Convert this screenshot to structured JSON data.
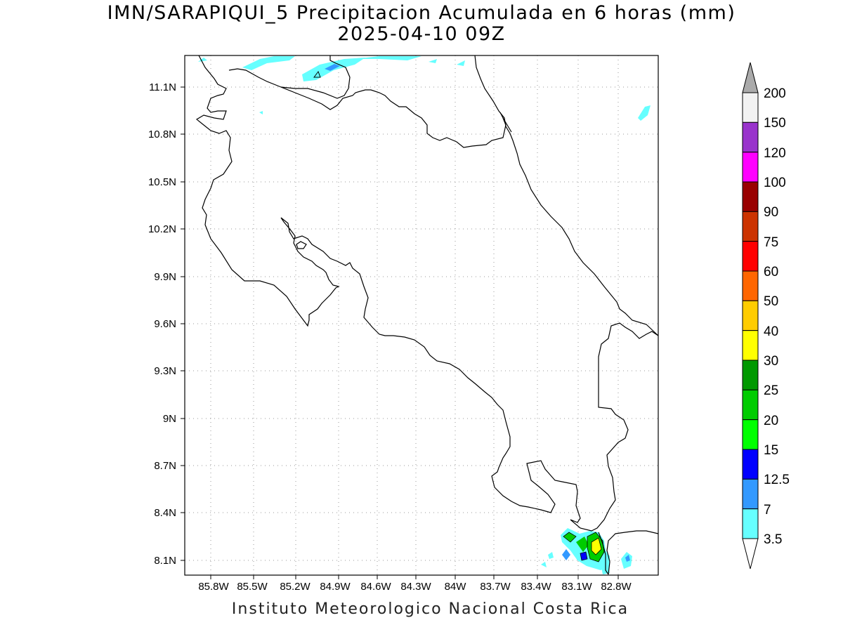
{
  "header": {
    "title_line1": "IMN/SARAPIQUI_5 Precipitacion Acumulada en 6 horas (mm)",
    "title_line2": "2025-04-10 09Z"
  },
  "footer": {
    "credit": "Instituto Meteorologico Nacional Costa Rica"
  },
  "map": {
    "lat_ticks": [
      "11.1N",
      "10.8N",
      "10.5N",
      "10.2N",
      "9.9N",
      "9.6N",
      "9.3N",
      "9N",
      "8.7N",
      "8.4N",
      "8.1N"
    ],
    "lon_ticks": [
      "85.8W",
      "85.5W",
      "85.2W",
      "84.9W",
      "84.6W",
      "84.3W",
      "84W",
      "83.7W",
      "83.4W",
      "83.1W",
      "82.8W"
    ],
    "grid": "dotted"
  },
  "colorbar": {
    "labels": [
      "200",
      "150",
      "120",
      "100",
      "90",
      "75",
      "60",
      "50",
      "40",
      "30",
      "25",
      "20",
      "15",
      "12.5",
      "7",
      "3.5"
    ],
    "colors": [
      "#f2f2f2",
      "#9933cc",
      "#ff00ff",
      "#990000",
      "#cc3300",
      "#ff0000",
      "#ff6600",
      "#ffcc00",
      "#ffff00",
      "#009900",
      "#00cc00",
      "#00ff00",
      "#0000ff",
      "#3399ff",
      "#66ffff"
    ]
  }
}
